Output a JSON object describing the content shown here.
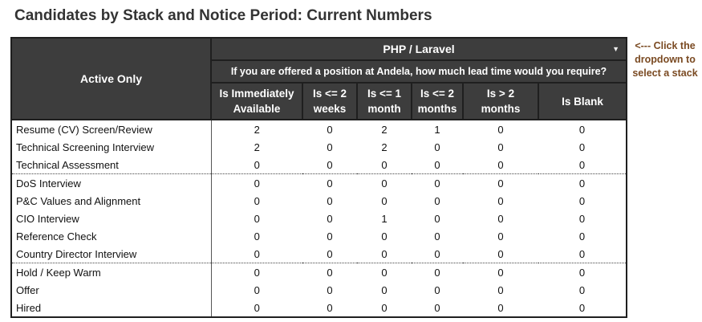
{
  "title": "Candidates by Stack and Notice Period: Current Numbers",
  "header": {
    "row_header": "Active Only",
    "stack_selected": "PHP / Laravel",
    "question": "If you are offered a position at Andela, how much lead time would you require?",
    "columns": [
      [
        "Is Immediately",
        "Available"
      ],
      [
        "Is <= 2",
        "weeks"
      ],
      [
        "Is <= 1",
        "month"
      ],
      [
        "Is <= 2",
        "months"
      ],
      [
        "Is > 2",
        "months"
      ],
      [
        "Is Blank",
        ""
      ]
    ]
  },
  "side_note": [
    "<--- Click the",
    "dropdown to",
    "select a stack"
  ],
  "rows": [
    {
      "label": "Resume (CV) Screen/Review",
      "values": [
        "2",
        "0",
        "2",
        "1",
        "0",
        "0"
      ]
    },
    {
      "label": "Technical Screening Interview",
      "values": [
        "2",
        "0",
        "2",
        "0",
        "0",
        "0"
      ]
    },
    {
      "label": "Technical Assessment",
      "values": [
        "0",
        "0",
        "0",
        "0",
        "0",
        "0"
      ]
    },
    {
      "label": "DoS Interview",
      "values": [
        "0",
        "0",
        "0",
        "0",
        "0",
        "0"
      ]
    },
    {
      "label": "P&C Values and Alignment",
      "values": [
        "0",
        "0",
        "0",
        "0",
        "0",
        "0"
      ]
    },
    {
      "label": "CIO Interview",
      "values": [
        "0",
        "0",
        "1",
        "0",
        "0",
        "0"
      ]
    },
    {
      "label": "Reference Check",
      "values": [
        "0",
        "0",
        "0",
        "0",
        "0",
        "0"
      ]
    },
    {
      "label": "Country Director Interview",
      "values": [
        "0",
        "0",
        "0",
        "0",
        "0",
        "0"
      ]
    },
    {
      "label": "Hold / Keep Warm",
      "values": [
        "0",
        "0",
        "0",
        "0",
        "0",
        "0"
      ]
    },
    {
      "label": "Offer",
      "values": [
        "0",
        "0",
        "0",
        "0",
        "0",
        "0"
      ]
    },
    {
      "label": "Hired",
      "values": [
        "0",
        "0",
        "0",
        "0",
        "0",
        "0"
      ]
    }
  ],
  "colors": {
    "header_bg": "#3d3d3d",
    "note": "#7a4a22",
    "title": "#333333"
  },
  "icons": {
    "dropdown": "caret-down-icon"
  }
}
